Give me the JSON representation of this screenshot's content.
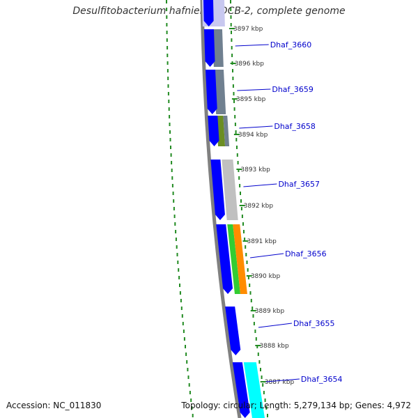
{
  "map": {
    "title": "Desulfitobacterium hafniense DCB-2, complete genome",
    "accession": "Accession: NC_011830",
    "summary": "Topology: circular; Length: 5,279,134 bp; Genes: 4,972",
    "ticks": [
      "3897 kbp",
      "3896 kbp",
      "3895 kbp",
      "3894 kbp",
      "3893 kbp",
      "3892 kbp",
      "3891 kbp",
      "3890 kbp",
      "3889 kbp",
      "3888 kbp",
      "3887 kbp"
    ],
    "genes": [
      {
        "name": "Dhaf_3660",
        "color": "#4682b4"
      },
      {
        "name": "Dhaf_3659",
        "color": "#4682b4"
      },
      {
        "name": "Dhaf_3658",
        "color": "#6b8e23"
      },
      {
        "name": "Dhaf_3657",
        "color": "#c0c0c0"
      },
      {
        "name": "Dhaf_3656",
        "color": "#32cd32"
      },
      {
        "name": "Dhaf_3655",
        "color": ""
      },
      {
        "name": "Dhaf_3654",
        "color": "#00ffff"
      }
    ],
    "colors": {
      "cds": "#0000ff",
      "backbone": "#808080",
      "gc_dots": "#228b22",
      "label": "#0000cc",
      "orange": "#ff8c00",
      "slate": "#708090"
    }
  }
}
